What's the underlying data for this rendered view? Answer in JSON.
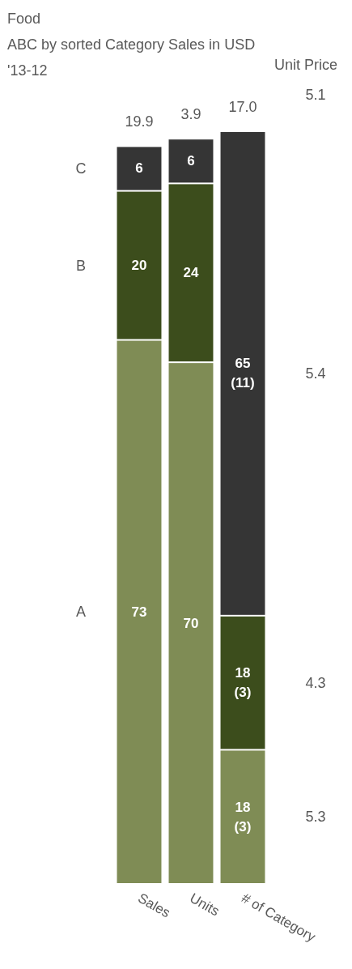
{
  "chart_data": {
    "type": "bar",
    "title": "Food",
    "subtitle": "ABC by sorted Category Sales in USD\n'13-12",
    "stacked": true,
    "tick_labels": "x",
    "legend": false,
    "categories": [
      "Sales",
      "Units",
      "# of Category"
    ],
    "series": [
      {
        "name": "A",
        "color": "#7f8c55",
        "values": [
          73,
          70,
          18
        ],
        "value_labels": [
          "73",
          "70",
          "18\n(3)"
        ]
      },
      {
        "name": "B",
        "color": "#3c4d1c",
        "values": [
          20,
          24,
          18
        ],
        "value_labels": [
          "20",
          "24",
          "18\n(3)"
        ]
      },
      {
        "name": "C",
        "color": "#353535",
        "values": [
          6,
          6,
          65
        ],
        "value_labels": [
          "6",
          "6",
          "65\n(11)"
        ]
      }
    ],
    "annotations": [
      "19.9",
      "3.9",
      "17.0",
      "Unit Price",
      "5.1",
      "5.4",
      "4.3",
      "5.3"
    ]
  }
}
